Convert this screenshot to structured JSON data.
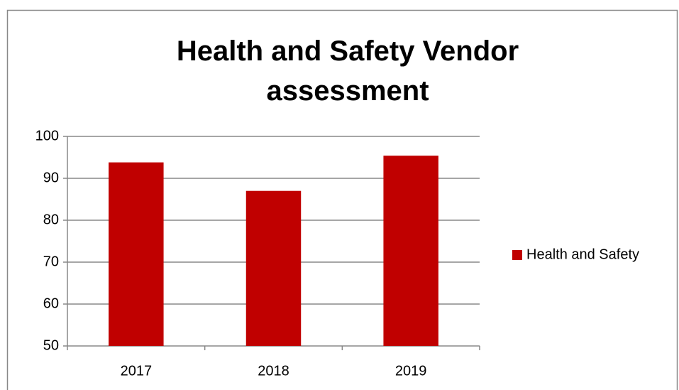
{
  "chart_data": {
    "type": "bar",
    "title": "Health and Safety Vendor assessment",
    "categories": [
      "2017",
      "2018",
      "2019"
    ],
    "series": [
      {
        "name": "Health and Safety",
        "color": "#c00000",
        "values": [
          93.8,
          87.0,
          95.4
        ]
      }
    ],
    "ylim": [
      50,
      100
    ],
    "yticks": [
      50,
      60,
      70,
      80,
      90,
      100
    ],
    "grid": true,
    "legend": "right"
  }
}
